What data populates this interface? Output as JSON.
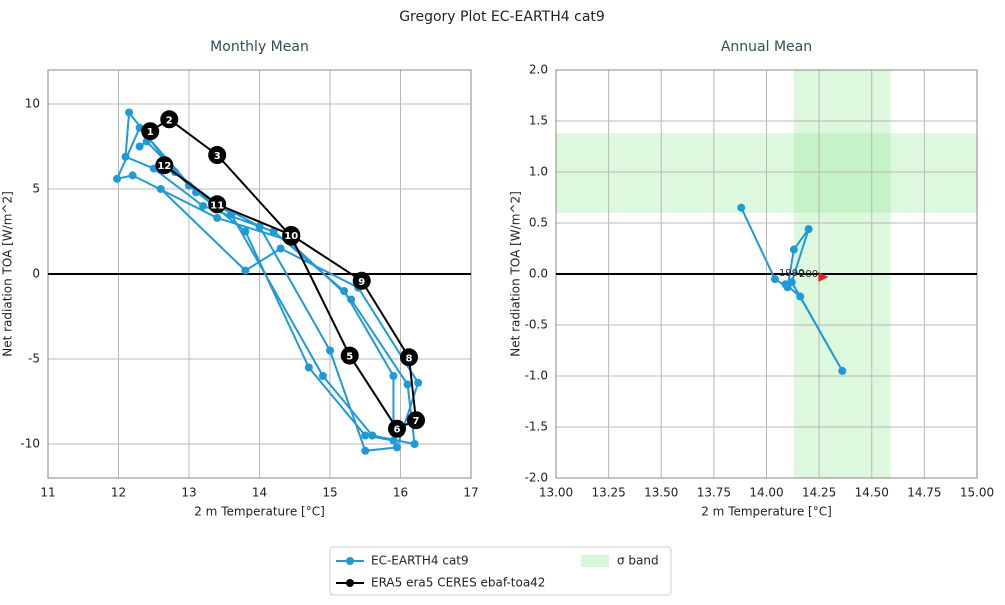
{
  "title": "Gregory Plot EC-EARTH4 cat9",
  "chart_data": [
    {
      "type": "line",
      "title": "Monthly Mean",
      "x_label": "2 m Temperature [°C]",
      "y_label": "Net radiation TOA [W/m^2]",
      "xlim": [
        11,
        17
      ],
      "ylim": [
        -12,
        12
      ],
      "xticks": [
        11,
        12,
        13,
        14,
        15,
        16,
        17
      ],
      "yticks": [
        -10,
        -5,
        0,
        5,
        10
      ],
      "grid": true,
      "hline": 0,
      "series": [
        {
          "name": "EC-EARTH4 cat9",
          "color": "#1f9ad6",
          "x": [
            12.3,
            12.4,
            13.0,
            13.8,
            14.7,
            15.5,
            15.9,
            15.9,
            15.2,
            14.2,
            13.2,
            12.5,
            12.1,
            12.15,
            12.8,
            13.6,
            14.9,
            15.6,
            16.2,
            16.1,
            15.3,
            14.4,
            13.4,
            12.2,
            11.98,
            12.3,
            13.1,
            14.0,
            15.0,
            15.5,
            15.95,
            16.25,
            15.4,
            14.3,
            13.8,
            12.6
          ],
          "values": [
            7.5,
            7.8,
            5.2,
            2.5,
            -5.5,
            -9.5,
            -9.8,
            -6.0,
            -1.0,
            2.5,
            4.0,
            6.2,
            6.9,
            9.5,
            6.0,
            3.5,
            -6.0,
            -9.5,
            -10.0,
            -6.5,
            -1.5,
            2.0,
            3.3,
            5.8,
            5.6,
            8.6,
            4.8,
            2.8,
            -4.5,
            -10.4,
            -10.2,
            -6.4,
            -0.8,
            1.5,
            0.2,
            5.0
          ]
        },
        {
          "name": "ERA5 era5 CERES ebaf-toa42",
          "color": "#000000",
          "x": [
            12.45,
            12.72,
            13.4,
            14.45,
            15.28,
            15.95,
            16.22,
            16.12,
            15.45,
            14.45,
            13.4,
            12.65
          ],
          "values": [
            8.4,
            9.1,
            7.0,
            2.2,
            -4.8,
            -9.1,
            -8.6,
            -4.9,
            -0.4,
            2.3,
            4.1,
            6.4
          ],
          "point_labels": [
            1,
            2,
            3,
            4,
            5,
            6,
            7,
            8,
            9,
            10,
            11,
            12
          ]
        }
      ]
    },
    {
      "type": "line",
      "title": "Annual Mean",
      "x_label": "2 m Temperature [°C]",
      "y_label": "Net radiation TOA [W/m^2]",
      "xlim": [
        13,
        15
      ],
      "ylim": [
        -2,
        2
      ],
      "xticks": [
        {
          "value": 13,
          "label": "13.00"
        },
        {
          "value": 13.25,
          "label": "13.25"
        },
        {
          "value": 13.5,
          "label": "13.50"
        },
        {
          "value": 13.75,
          "label": "13.75"
        },
        {
          "value": 14,
          "label": "14.00"
        },
        {
          "value": 14.25,
          "label": "14.25"
        },
        {
          "value": 14.5,
          "label": "14.50"
        },
        {
          "value": 14.75,
          "label": "14.75"
        },
        {
          "value": 15,
          "label": "15.00"
        }
      ],
      "yticks": [
        {
          "value": -2,
          "label": "-2.0"
        },
        {
          "value": -1.5,
          "label": "-1.5"
        },
        {
          "value": -1,
          "label": "-1.0"
        },
        {
          "value": -0.5,
          "label": "-0.5"
        },
        {
          "value": 0,
          "label": "0.0"
        },
        {
          "value": 0.5,
          "label": "0.5"
        },
        {
          "value": 1,
          "label": "1.0"
        },
        {
          "value": 1.5,
          "label": "1.5"
        },
        {
          "value": 2,
          "label": "2.0"
        }
      ],
      "grid": true,
      "hline": 0,
      "band": {
        "name": "σ band",
        "color": "#8ee88e",
        "x_range": [
          14.13,
          14.59
        ],
        "y_range": [
          0.6,
          1.38
        ]
      },
      "series": [
        {
          "name": "EC-EARTH4 cat9",
          "color": "#1f9ad6",
          "x": [
            13.88,
            14.04,
            14.1,
            14.13,
            14.2,
            14.12,
            14.36,
            14.16,
            14.09
          ],
          "values": [
            0.65,
            -0.05,
            -0.13,
            0.24,
            0.44,
            -0.08,
            -0.95,
            -0.22,
            -0.1
          ]
        }
      ],
      "marker": {
        "x": 14.27,
        "y": -0.03,
        "color": "#d62728"
      },
      "annotations": [
        "1990",
        "200"
      ]
    }
  ]
}
